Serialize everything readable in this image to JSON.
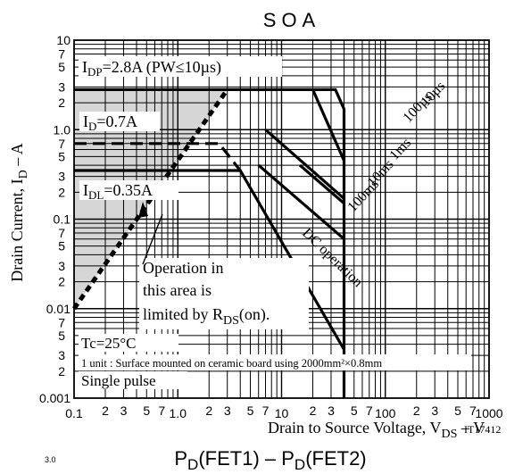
{
  "chart_data": {
    "type": "line",
    "title": "SOA",
    "xlabel": {
      "main": "Drain to Source Voltage, V",
      "sub": "DS",
      "tail": " – V"
    },
    "ylabel": {
      "main": "Drain Current, I",
      "sub": "D",
      "tail": " – A"
    },
    "x_scale": "log",
    "y_scale": "log",
    "xlim": [
      0.1,
      1000
    ],
    "ylim": [
      0.001,
      10
    ],
    "grid": true,
    "x_major_ticks": [
      {
        "value": 0.1,
        "label": "0.1"
      },
      {
        "value": 1,
        "label": "1.0"
      },
      {
        "value": 10,
        "label": "10"
      },
      {
        "value": 100,
        "label": "100"
      },
      {
        "value": 1000,
        "label": "1000"
      }
    ],
    "x_minor_labels": [
      "2",
      "3",
      "5",
      "7"
    ],
    "y_major_ticks": [
      {
        "value": 10,
        "label": "10"
      },
      {
        "value": 1,
        "label": "1.0"
      },
      {
        "value": 0.1,
        "label": "0.1"
      },
      {
        "value": 0.01,
        "label": "0.01"
      },
      {
        "value": 0.001,
        "label": "0.001"
      }
    ],
    "y_minor_labels": [
      "7",
      "5",
      "3",
      "2"
    ],
    "series": [
      {
        "name": "10µs",
        "x": [
          0.1,
          33,
          40,
          40
        ],
        "y": [
          2.8,
          2.8,
          1.7,
          0.001
        ]
      },
      {
        "name": "100µs",
        "x": [
          20,
          40
        ],
        "y": [
          2.8,
          0.45
        ]
      },
      {
        "name": "1ms",
        "x": [
          7,
          40
        ],
        "y": [
          1.0,
          0.17
        ]
      },
      {
        "name": "10ms",
        "x": [
          15,
          40
        ],
        "y": [
          0.4,
          0.15
        ]
      },
      {
        "name": "100ms",
        "x": [
          6,
          40
        ],
        "y": [
          0.4,
          0.06
        ]
      },
      {
        "name": "DC operation",
        "x": [
          0.1,
          4,
          40
        ],
        "y": [
          0.35,
          0.35,
          0.0035
        ]
      },
      {
        "name": "I_D=0.7A",
        "x": [
          0.1,
          2.5,
          4
        ],
        "y": [
          0.7,
          0.7,
          0.35
        ]
      },
      {
        "name": "R_DS(on) limit",
        "x": [
          0.1,
          3
        ],
        "y": [
          0.01,
          2.8
        ]
      }
    ],
    "annotations": {
      "idp": {
        "main": "I",
        "sub": "DP",
        "rest": "=2.8A (PW≤10µs)"
      },
      "id": {
        "main": "I",
        "sub": "D",
        "rest": "=0.7A"
      },
      "idl": {
        "main": "I",
        "sub": "DL",
        "rest": "=0.35A"
      },
      "operation_line1": "Operation in",
      "operation_line2": "this area is",
      "operation_line3_main": "limited by R",
      "operation_line3_sub": "DS",
      "operation_line3_tail": "(on).",
      "tc": "Tc=25°C",
      "unit": "1 unit : Surface mounted on ceramic board using 2000mm²×0.8mm",
      "pulse": "Single pulse",
      "label_10us": "10µs",
      "label_100us": "100µs",
      "label_1ms": "1ms",
      "label_10ms": "10ms",
      "label_100ms": "100ms",
      "label_dc": "DC operation",
      "code": "IT17412"
    }
  },
  "footer_title": {
    "main": "P",
    "sub1": "D",
    "mid1": "(FET1)  –  P",
    "sub2": "D",
    "mid2": "(FET2)"
  },
  "footer_axis_value": "3.0"
}
